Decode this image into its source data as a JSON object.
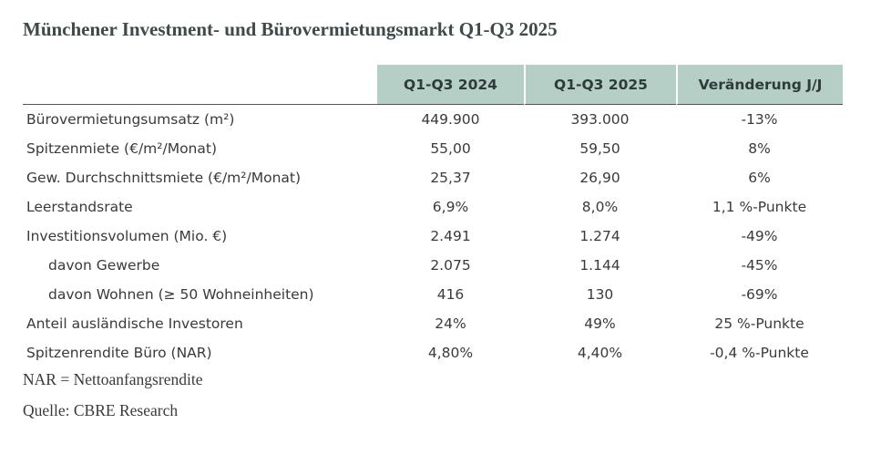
{
  "title": "Münchener Investment- und Bürovermietungsmarkt Q1-Q3 2025",
  "table": {
    "headers": [
      "Q1-Q3 2024",
      "Q1-Q3 2025",
      "Veränderung J/J"
    ],
    "rows": [
      {
        "label": "Bürovermietungsumsatz (m²)",
        "values": [
          "449.900",
          "393.000",
          "-13%"
        ],
        "indent": false
      },
      {
        "label": "Spitzenmiete (€/m²/Monat)",
        "values": [
          "55,00",
          "59,50",
          "8%"
        ],
        "indent": false
      },
      {
        "label": "Gew. Durchschnittsmiete (€/m²/Monat)",
        "values": [
          "25,37",
          "26,90",
          "6%"
        ],
        "indent": false
      },
      {
        "label": "Leerstandsrate",
        "values": [
          "6,9%",
          "8,0%",
          "1,1 %-Punkte"
        ],
        "indent": false
      },
      {
        "label": "Investitionsvolumen (Mio. €)",
        "values": [
          "2.491",
          "1.274",
          "-49%"
        ],
        "indent": false
      },
      {
        "label": "davon Gewerbe",
        "values": [
          "2.075",
          "1.144",
          "-45%"
        ],
        "indent": true
      },
      {
        "label": "davon Wohnen (≥ 50 Wohneinheiten)",
        "values": [
          "416",
          "130",
          "-69%"
        ],
        "indent": true
      },
      {
        "label": "Anteil ausländische Investoren",
        "values": [
          "24%",
          "49%",
          "25 %-Punkte"
        ],
        "indent": false
      },
      {
        "label": "Spitzenrendite Büro (NAR)",
        "values": [
          "4,80%",
          "4,40%",
          "-0,4 %-Punkte"
        ],
        "indent": false
      }
    ]
  },
  "notes": {
    "nar": "NAR = Nettoanfangsrendite",
    "source": "Quelle: CBRE Research"
  },
  "colors": {
    "header_fill": "#b5cfc6",
    "title_text": "#3f4a4a",
    "body_text": "#3a3a3a"
  }
}
